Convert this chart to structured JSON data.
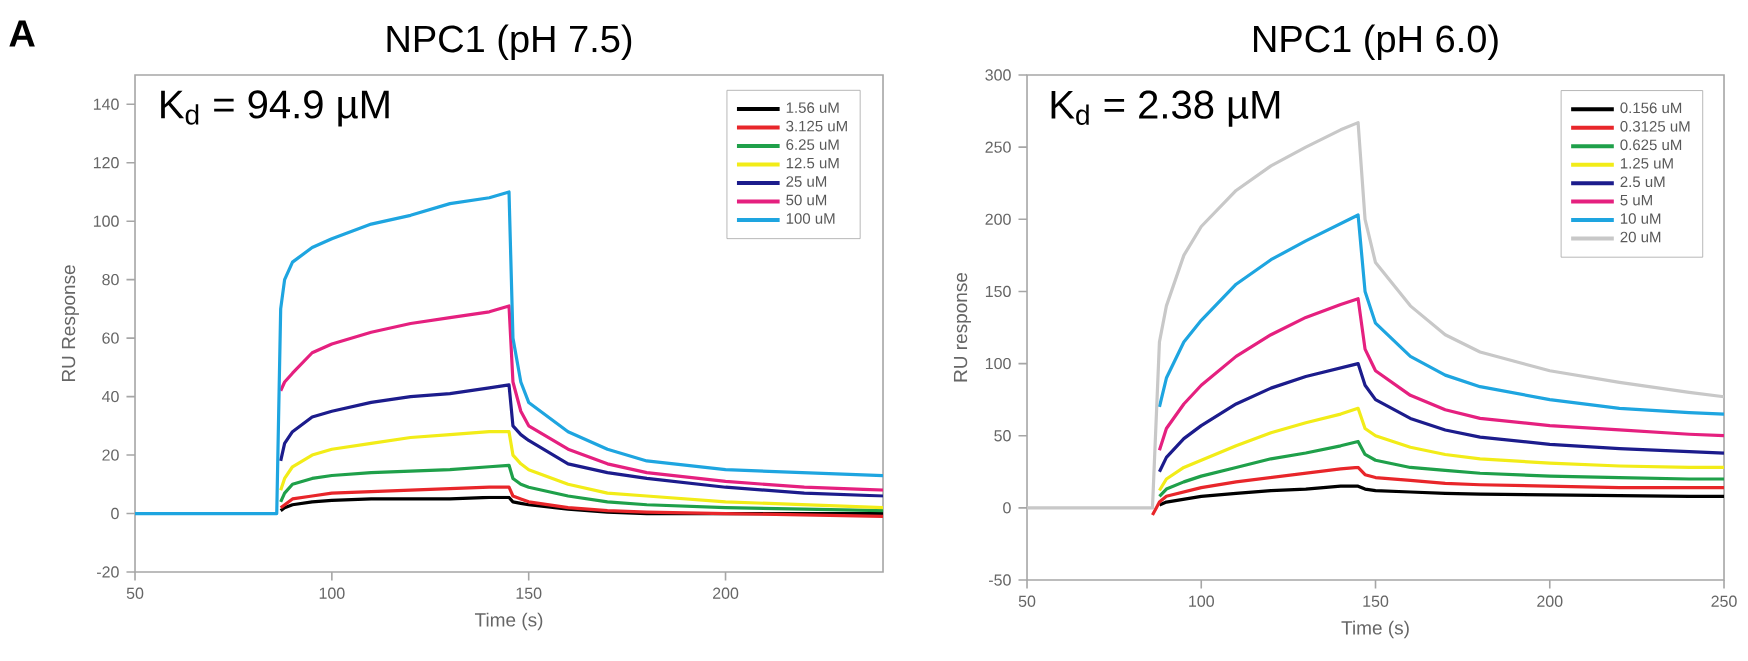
{
  "chart_data": [
    {
      "type": "line",
      "title": "NPC1 (pH 7.5)",
      "xlabel": "Time (s)",
      "ylabel": "RU Response",
      "annotations": [
        "A",
        "K$_{d}$ = 94.9 µM"
      ],
      "xlim": [
        50,
        240
      ],
      "xticks": [
        50,
        100,
        150,
        200
      ],
      "ylim": [
        -20,
        150
      ],
      "yticks": [
        -20,
        0,
        20,
        40,
        60,
        80,
        100,
        120,
        140
      ],
      "grid": false,
      "legend": "top right",
      "marker": "none",
      "line_style": "solid",
      "x": [
        50,
        70,
        86,
        87,
        88,
        90,
        95,
        100,
        110,
        120,
        130,
        140,
        145,
        146,
        148,
        150,
        160,
        170,
        180,
        200,
        220,
        240
      ],
      "series": [
        {
          "name": "1.56 uM",
          "color": "#000000",
          "values": [
            null,
            null,
            null,
            1,
            2,
            3,
            4,
            4.5,
            5,
            5,
            5,
            5.5,
            5.5,
            4,
            3.5,
            3,
            1.5,
            0.5,
            0,
            0,
            0,
            0
          ]
        },
        {
          "name": "3.125 uM",
          "color": "#e8262a",
          "values": [
            null,
            null,
            null,
            2,
            3,
            5,
            6,
            7,
            7.5,
            8,
            8.5,
            9,
            9,
            6,
            5,
            4,
            2,
            1,
            0.5,
            0,
            -0.5,
            -1
          ]
        },
        {
          "name": "6.25 uM",
          "color": "#1fa04a",
          "values": [
            null,
            null,
            null,
            4,
            7,
            10,
            12,
            13,
            14,
            14.5,
            15,
            16,
            16.5,
            12,
            10,
            9,
            6,
            4,
            3,
            2,
            1.5,
            1
          ]
        },
        {
          "name": "12.5 uM",
          "color": "#f2ec18",
          "values": [
            null,
            null,
            null,
            8,
            12,
            16,
            20,
            22,
            24,
            26,
            27,
            28,
            28,
            20,
            17,
            15,
            10,
            7,
            6,
            4,
            3,
            2
          ]
        },
        {
          "name": "25 uM",
          "color": "#1c1c8c",
          "values": [
            null,
            null,
            null,
            18,
            24,
            28,
            33,
            35,
            38,
            40,
            41,
            43,
            44,
            30,
            27,
            25,
            17,
            14,
            12,
            9,
            7,
            6
          ]
        },
        {
          "name": "50 uM",
          "color": "#e5207f",
          "values": [
            null,
            null,
            null,
            42,
            45,
            48,
            55,
            58,
            62,
            65,
            67,
            69,
            71,
            45,
            35,
            30,
            22,
            17,
            14,
            11,
            9,
            8
          ]
        },
        {
          "name": "100 uM",
          "color": "#1ea5e0",
          "values": [
            0,
            0,
            0,
            70,
            80,
            86,
            91,
            94,
            99,
            102,
            106,
            108,
            110,
            60,
            45,
            38,
            28,
            22,
            18,
            15,
            14,
            13
          ]
        }
      ]
    },
    {
      "type": "line",
      "title": "NPC1 (pH 6.0)",
      "xlabel": "Time (s)",
      "ylabel": "RU response",
      "annotations": [
        "K$_{d}$ = 2.38 µM"
      ],
      "xlim": [
        50,
        250
      ],
      "xticks": [
        50,
        100,
        150,
        200,
        250
      ],
      "ylim": [
        -50,
        300
      ],
      "yticks": [
        -50,
        0,
        50,
        100,
        150,
        200,
        250,
        300
      ],
      "grid": false,
      "legend": "top right",
      "marker": "none",
      "line_style": "solid",
      "x": [
        50,
        70,
        86,
        88,
        90,
        95,
        100,
        110,
        120,
        130,
        140,
        145,
        147,
        150,
        160,
        170,
        180,
        200,
        220,
        240,
        250
      ],
      "series": [
        {
          "name": "0.156 uM",
          "color": "#000000",
          "values": [
            null,
            null,
            null,
            2,
            4,
            6,
            8,
            10,
            12,
            13,
            15,
            15,
            13,
            12,
            11,
            10,
            9.5,
            9,
            8.5,
            8,
            8
          ]
        },
        {
          "name": "0.3125 uM",
          "color": "#e8262a",
          "values": [
            null,
            null,
            -5,
            4,
            8,
            11,
            14,
            18,
            21,
            24,
            27,
            28,
            23,
            21,
            19,
            17,
            16,
            15,
            14,
            14,
            14
          ]
        },
        {
          "name": "0.625 uM",
          "color": "#1fa04a",
          "values": [
            null,
            null,
            null,
            8,
            13,
            18,
            22,
            28,
            34,
            38,
            43,
            46,
            37,
            33,
            28,
            26,
            24,
            22,
            21,
            20,
            20
          ]
        },
        {
          "name": "1.25 uM",
          "color": "#f2ec18",
          "values": [
            null,
            null,
            null,
            12,
            20,
            28,
            33,
            43,
            52,
            59,
            65,
            69,
            55,
            50,
            42,
            37,
            34,
            31,
            29,
            28,
            28
          ]
        },
        {
          "name": "2.5 uM",
          "color": "#1c1c8c",
          "values": [
            null,
            null,
            null,
            25,
            35,
            48,
            57,
            72,
            83,
            91,
            97,
            100,
            85,
            75,
            62,
            54,
            49,
            44,
            41,
            39,
            38
          ]
        },
        {
          "name": "5 uM",
          "color": "#e5207f",
          "values": [
            null,
            null,
            null,
            40,
            55,
            72,
            85,
            105,
            120,
            132,
            141,
            145,
            110,
            95,
            78,
            68,
            62,
            57,
            54,
            51,
            50
          ]
        },
        {
          "name": "10 uM",
          "color": "#1ea5e0",
          "values": [
            null,
            null,
            null,
            70,
            90,
            115,
            130,
            155,
            172,
            185,
            197,
            203,
            150,
            128,
            105,
            92,
            84,
            75,
            69,
            66,
            65
          ]
        },
        {
          "name": "20 uM",
          "color": "#c8c8c8",
          "values": [
            0,
            0,
            0,
            115,
            140,
            175,
            195,
            220,
            237,
            250,
            262,
            267,
            200,
            170,
            140,
            120,
            108,
            95,
            87,
            80,
            77
          ]
        }
      ]
    }
  ]
}
